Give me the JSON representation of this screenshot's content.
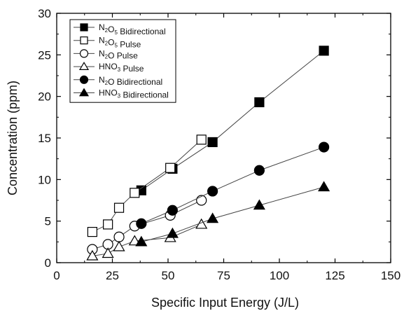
{
  "chart_data": {
    "type": "line",
    "xlabel": "Specific Input Energy (J/L)",
    "ylabel": "Concentration (ppm)",
    "xlim": [
      0,
      150
    ],
    "ylim": [
      0,
      30
    ],
    "xticks": [
      "0",
      "25",
      "50",
      "75",
      "100",
      "125",
      "150"
    ],
    "yticks": [
      "0",
      "5",
      "10",
      "15",
      "20",
      "25",
      "30"
    ],
    "grid": false,
    "legend_position": "top-left",
    "series": [
      {
        "name": "N2O5 Bidirectional",
        "label_parts": [
          [
            "N",
            ""
          ],
          [
            "2",
            "sub"
          ],
          [
            "O",
            ""
          ],
          [
            "5",
            "sub"
          ],
          [
            " Bidirectional",
            ""
          ]
        ],
        "marker": "square-filled",
        "x": [
          38,
          52,
          70,
          91,
          120
        ],
        "y": [
          8.7,
          11.3,
          14.5,
          19.3,
          25.5
        ]
      },
      {
        "name": "N2O5 Pulse",
        "label_parts": [
          [
            "N",
            ""
          ],
          [
            "2",
            "sub"
          ],
          [
            "O",
            ""
          ],
          [
            "5",
            "sub"
          ],
          [
            " Pulse",
            ""
          ]
        ],
        "marker": "square-open",
        "x": [
          16,
          23,
          28,
          35,
          51,
          65
        ],
        "y": [
          3.7,
          4.6,
          6.6,
          8.4,
          11.4,
          14.8
        ]
      },
      {
        "name": "N2O Pulse",
        "label_parts": [
          [
            "N",
            ""
          ],
          [
            "2",
            "sub"
          ],
          [
            "O Pulse",
            ""
          ]
        ],
        "marker": "circle-open",
        "x": [
          16,
          23,
          28,
          35,
          51,
          65
        ],
        "y": [
          1.6,
          2.2,
          3.1,
          4.4,
          5.7,
          7.5
        ]
      },
      {
        "name": "HNO3 Pulse",
        "label_parts": [
          [
            "HNO",
            ""
          ],
          [
            "3",
            "sub"
          ],
          [
            " Pulse",
            ""
          ]
        ],
        "marker": "triangle-open",
        "x": [
          16,
          23,
          28,
          35,
          51,
          65
        ],
        "y": [
          0.8,
          1.1,
          1.9,
          2.6,
          3.0,
          4.6
        ]
      },
      {
        "name": "N2O Bidirectional",
        "label_parts": [
          [
            "N",
            ""
          ],
          [
            "2",
            "sub"
          ],
          [
            "O Bidirectional",
            ""
          ]
        ],
        "marker": "circle-filled",
        "x": [
          38,
          52,
          70,
          91,
          120
        ],
        "y": [
          4.7,
          6.3,
          8.6,
          11.1,
          13.9
        ]
      },
      {
        "name": "HNO3 Bidirectional",
        "label_parts": [
          [
            "HNO",
            ""
          ],
          [
            "3",
            "sub"
          ],
          [
            " Bidirectional",
            ""
          ]
        ],
        "marker": "triangle-filled",
        "x": [
          38,
          52,
          70,
          91,
          120
        ],
        "y": [
          2.5,
          3.5,
          5.3,
          6.9,
          9.1
        ]
      }
    ]
  }
}
